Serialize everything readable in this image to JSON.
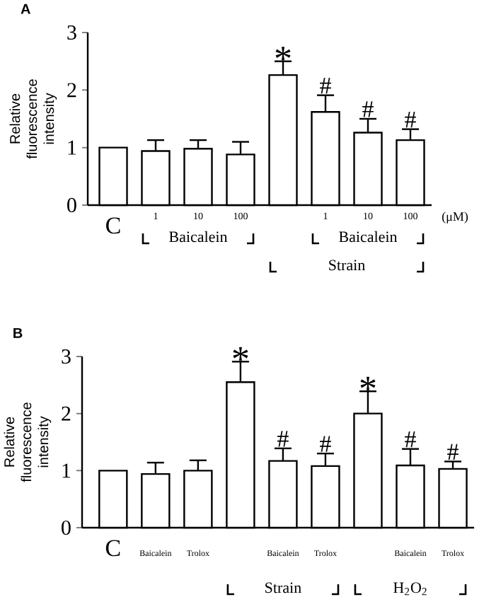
{
  "chart_data": [
    {
      "type": "bar",
      "title": "A",
      "ylabel": "Relative fluorescence intensity",
      "categories": [
        "C",
        "1",
        "10",
        "100",
        null,
        "1",
        "10",
        "100"
      ],
      "values": [
        1.0,
        0.94,
        0.98,
        0.88,
        2.26,
        1.62,
        1.26,
        1.13
      ],
      "errors": [
        null,
        0.19,
        0.15,
        0.22,
        0.24,
        0.29,
        0.24,
        0.19
      ],
      "value_labels": [
        null,
        null,
        null,
        null,
        "*",
        "#",
        "#",
        "#"
      ],
      "color": "#ffffff",
      "ylim": [
        0,
        3
      ],
      "yticks": [
        0,
        1,
        2,
        3
      ],
      "grid": false,
      "annotations": [
        "Baicalein",
        "Baicalein",
        "Strain",
        "(μM)"
      ]
    },
    {
      "type": "bar",
      "title": "B",
      "ylabel": "Relative fluorescence intensity",
      "categories": [
        "C",
        "Baicalein",
        "Trolox",
        null,
        "Baicalein",
        "Trolox",
        null,
        "Baicalein",
        "Trolox"
      ],
      "values": [
        1.0,
        0.94,
        1.0,
        2.55,
        1.17,
        1.08,
        2.0,
        1.09,
        1.03
      ],
      "errors": [
        null,
        0.2,
        0.18,
        0.36,
        0.22,
        0.22,
        0.39,
        0.29,
        0.13
      ],
      "value_labels": [
        null,
        null,
        null,
        "*",
        "#",
        "#",
        "*",
        "#",
        "#"
      ],
      "color": "#ffffff",
      "ylim": [
        0,
        3
      ],
      "yticks": [
        0,
        1,
        2,
        3
      ],
      "grid": false,
      "annotations": [
        "Strain",
        "H$_{2}$O$_{2}$"
      ]
    }
  ]
}
